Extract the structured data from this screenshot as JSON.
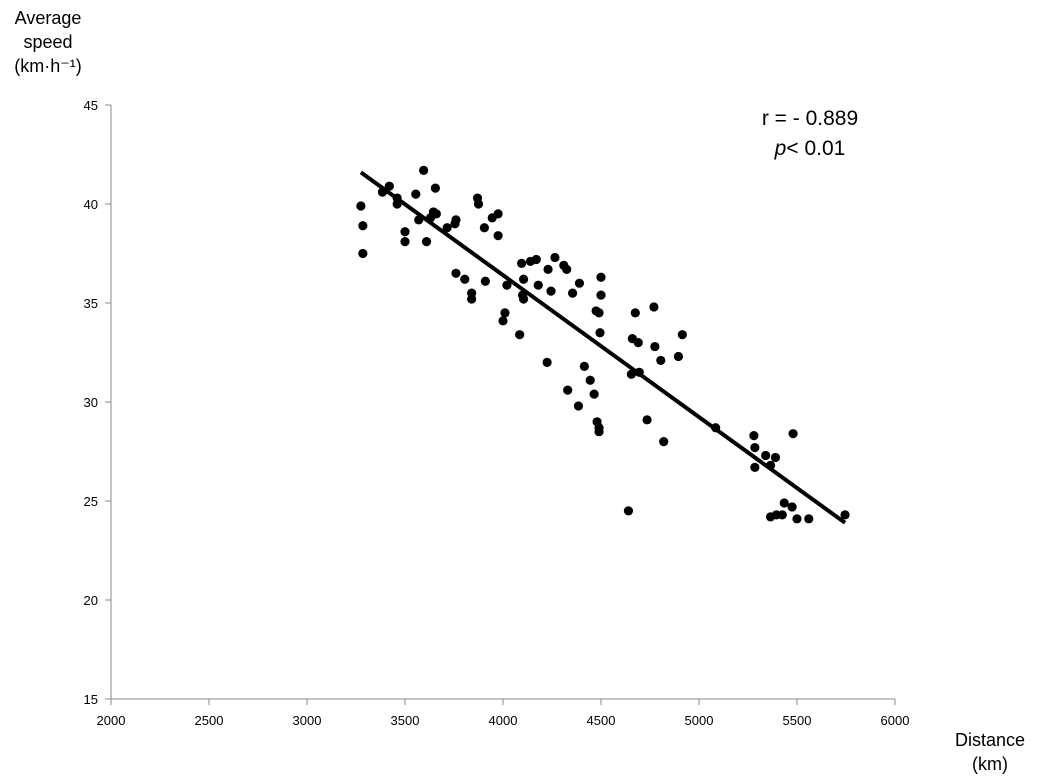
{
  "chart_data": {
    "type": "scatter",
    "title": "",
    "xlabel_line1": "Distance",
    "xlabel_line2": "(km)",
    "ylabel_line1": "Average",
    "ylabel_line2": "speed",
    "ylabel_line3": "(km·h⁻¹)",
    "xlim": [
      2000,
      6000
    ],
    "ylim": [
      15,
      45
    ],
    "x_ticks": [
      2000,
      2500,
      3000,
      3500,
      4000,
      4500,
      5000,
      5500,
      6000
    ],
    "y_ticks": [
      15,
      20,
      25,
      30,
      35,
      40,
      45
    ],
    "grid": false,
    "annotation": {
      "r_text": "r = - 0.889",
      "p_symbol": "p",
      "p_rest": "< 0.01"
    },
    "trendline": {
      "x": [
        3275,
        5745
      ],
      "y": [
        41.6,
        23.9
      ]
    },
    "marker_color": "#000000",
    "points": [
      {
        "x": 3275,
        "y": 39.9
      },
      {
        "x": 3285,
        "y": 38.9
      },
      {
        "x": 3285,
        "y": 37.5
      },
      {
        "x": 3385,
        "y": 40.6
      },
      {
        "x": 3420,
        "y": 40.9
      },
      {
        "x": 3460,
        "y": 40.3
      },
      {
        "x": 3460,
        "y": 40.0
      },
      {
        "x": 3500,
        "y": 38.6
      },
      {
        "x": 3500,
        "y": 38.1
      },
      {
        "x": 3555,
        "y": 40.5
      },
      {
        "x": 3570,
        "y": 39.2
      },
      {
        "x": 3595,
        "y": 41.7
      },
      {
        "x": 3610,
        "y": 38.1
      },
      {
        "x": 3630,
        "y": 39.3
      },
      {
        "x": 3645,
        "y": 39.6
      },
      {
        "x": 3655,
        "y": 40.8
      },
      {
        "x": 3660,
        "y": 39.5
      },
      {
        "x": 3715,
        "y": 38.8
      },
      {
        "x": 3760,
        "y": 39.2
      },
      {
        "x": 3755,
        "y": 39.0
      },
      {
        "x": 3760,
        "y": 36.5
      },
      {
        "x": 3805,
        "y": 36.2
      },
      {
        "x": 3840,
        "y": 35.5
      },
      {
        "x": 3840,
        "y": 35.2
      },
      {
        "x": 3870,
        "y": 40.3
      },
      {
        "x": 3875,
        "y": 40.0
      },
      {
        "x": 3905,
        "y": 38.8
      },
      {
        "x": 3910,
        "y": 36.1
      },
      {
        "x": 3945,
        "y": 39.3
      },
      {
        "x": 3975,
        "y": 39.5
      },
      {
        "x": 3975,
        "y": 38.4
      },
      {
        "x": 4000,
        "y": 34.1
      },
      {
        "x": 4010,
        "y": 34.5
      },
      {
        "x": 4020,
        "y": 35.9
      },
      {
        "x": 4085,
        "y": 33.4
      },
      {
        "x": 4095,
        "y": 37.0
      },
      {
        "x": 4100,
        "y": 35.4
      },
      {
        "x": 4105,
        "y": 36.2
      },
      {
        "x": 4105,
        "y": 35.2
      },
      {
        "x": 4140,
        "y": 37.1
      },
      {
        "x": 4170,
        "y": 37.2
      },
      {
        "x": 4180,
        "y": 35.9
      },
      {
        "x": 4225,
        "y": 32.0
      },
      {
        "x": 4230,
        "y": 36.7
      },
      {
        "x": 4245,
        "y": 35.6
      },
      {
        "x": 4265,
        "y": 37.3
      },
      {
        "x": 4310,
        "y": 36.9
      },
      {
        "x": 4325,
        "y": 36.7
      },
      {
        "x": 4330,
        "y": 30.6
      },
      {
        "x": 4355,
        "y": 35.5
      },
      {
        "x": 4385,
        "y": 29.8
      },
      {
        "x": 4390,
        "y": 36.0
      },
      {
        "x": 4415,
        "y": 31.8
      },
      {
        "x": 4445,
        "y": 31.1
      },
      {
        "x": 4465,
        "y": 30.4
      },
      {
        "x": 4475,
        "y": 34.6
      },
      {
        "x": 4480,
        "y": 29.0
      },
      {
        "x": 4490,
        "y": 28.7
      },
      {
        "x": 4490,
        "y": 28.5
      },
      {
        "x": 4490,
        "y": 34.5
      },
      {
        "x": 4495,
        "y": 33.5
      },
      {
        "x": 4500,
        "y": 35.4
      },
      {
        "x": 4500,
        "y": 36.3
      },
      {
        "x": 4640,
        "y": 24.5
      },
      {
        "x": 4655,
        "y": 31.4
      },
      {
        "x": 4660,
        "y": 33.2
      },
      {
        "x": 4675,
        "y": 34.5
      },
      {
        "x": 4690,
        "y": 33.0
      },
      {
        "x": 4695,
        "y": 31.5
      },
      {
        "x": 4735,
        "y": 29.1
      },
      {
        "x": 4770,
        "y": 34.8
      },
      {
        "x": 4775,
        "y": 32.8
      },
      {
        "x": 4805,
        "y": 32.1
      },
      {
        "x": 4820,
        "y": 28.0
      },
      {
        "x": 4895,
        "y": 32.3
      },
      {
        "x": 4915,
        "y": 33.4
      },
      {
        "x": 5085,
        "y": 28.7
      },
      {
        "x": 5280,
        "y": 28.3
      },
      {
        "x": 5285,
        "y": 27.7
      },
      {
        "x": 5285,
        "y": 26.7
      },
      {
        "x": 5340,
        "y": 27.3
      },
      {
        "x": 5365,
        "y": 26.8
      },
      {
        "x": 5365,
        "y": 24.2
      },
      {
        "x": 5390,
        "y": 27.2
      },
      {
        "x": 5395,
        "y": 24.3
      },
      {
        "x": 5425,
        "y": 24.3
      },
      {
        "x": 5435,
        "y": 24.9
      },
      {
        "x": 5475,
        "y": 24.7
      },
      {
        "x": 5480,
        "y": 28.4
      },
      {
        "x": 5500,
        "y": 24.1
      },
      {
        "x": 5560,
        "y": 24.1
      },
      {
        "x": 5745,
        "y": 24.3
      }
    ]
  }
}
